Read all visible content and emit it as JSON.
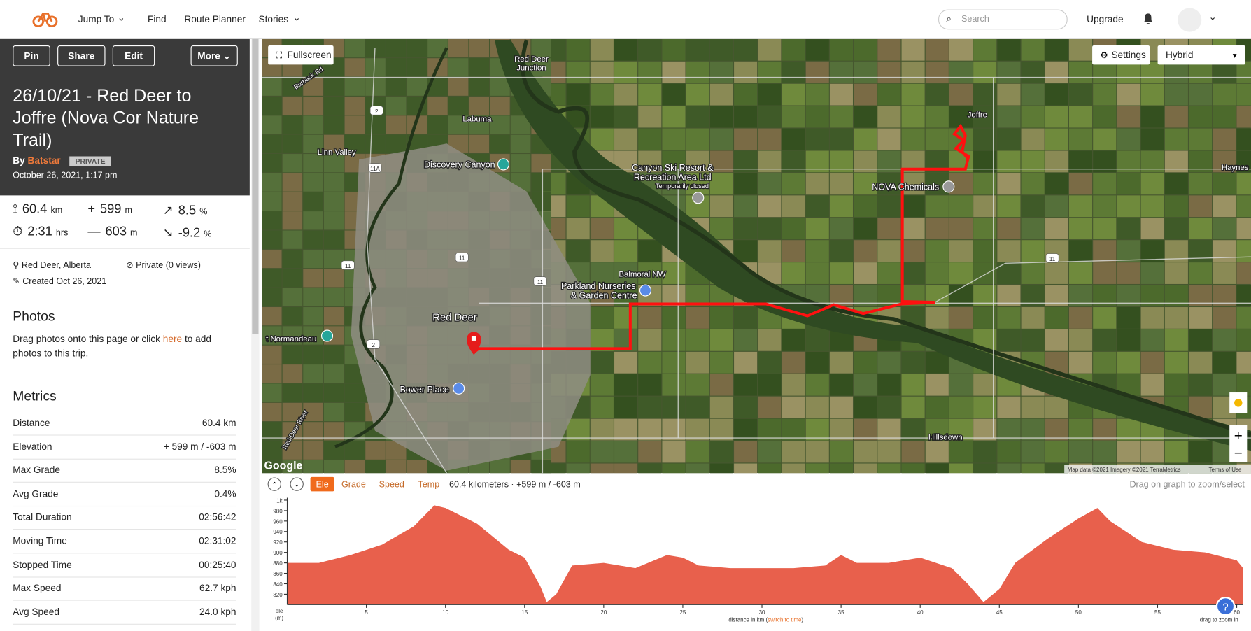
{
  "nav": {
    "items": [
      "Jump To",
      "Find",
      "Route Planner",
      "Stories"
    ],
    "search": "Search",
    "upgrade": "Upgrade"
  },
  "sidebar": {
    "buttons": [
      "Pin",
      "Share",
      "Edit",
      "More"
    ],
    "title": "26/10/21 - Red Deer to Joffre (Nova Cor Nature Trail)",
    "by": "By",
    "author": "Batstar",
    "privacy_badge": "PRIVATE",
    "date": "October 26, 2021, 1:17 pm",
    "stats": [
      {
        "value": "60.4",
        "unit": "km"
      },
      {
        "value": "599",
        "unit": "m"
      },
      {
        "value": "8.5",
        "unit": "%"
      },
      {
        "value": "2:31",
        "unit": "hrs"
      },
      {
        "value": "603",
        "unit": "m"
      },
      {
        "value": "-9.2",
        "unit": "%"
      }
    ],
    "location": "Red Deer, Alberta",
    "visibility": "Private (0 views)",
    "created": "Created Oct 26, 2021",
    "photos": {
      "title": "Photos",
      "text_before": "Drag photos onto this page or click ",
      "link": "here",
      "text_after": " to add photos to this trip."
    },
    "metrics": {
      "title": "Metrics",
      "rows": [
        [
          "Distance",
          "60.4 km"
        ],
        [
          "Elevation",
          "+ 599 m / -603 m"
        ],
        [
          "Max Grade",
          "8.5%"
        ],
        [
          "Avg Grade",
          "0.4%"
        ],
        [
          "Total Duration",
          "02:56:42"
        ],
        [
          "Moving Time",
          "02:31:02"
        ],
        [
          "Stopped Time",
          "00:25:40"
        ],
        [
          "Max Speed",
          "62.7 kph"
        ],
        [
          "Avg Speed",
          "24.0 kph"
        ]
      ]
    }
  },
  "map": {
    "fullscreen": "Fullscreen",
    "settings": "Settings",
    "map_type": "Hybrid",
    "labels": [
      "Red Deer",
      "Junction",
      "Labuma",
      "Linn Valley",
      "Discovery Canyon",
      "Canyon Ski Resort &",
      "Recreation Area Ltd",
      "Temporarily closed",
      "NOVA Chemicals",
      "Joffre",
      "Haynes",
      "Balmoral NW",
      "Parkland Nurseries",
      "& Garden Centre",
      "Red Deer",
      "t Normandeau",
      "Bower Place",
      "Hillsdown",
      "Red Deer River",
      "Burbank Rd"
    ],
    "shields": [
      "2",
      "11A",
      "11",
      "11",
      "11",
      "2",
      "11"
    ],
    "logo": "Google",
    "attribution": "Map data ©2021 Imagery ©2021 TerraMetrics",
    "terms": "Terms of Use"
  },
  "elevation": {
    "tabs": [
      "Ele",
      "Grade",
      "Speed",
      "Temp"
    ],
    "summary": "60.4 kilometers · +599 m / -603 m",
    "hint": "Drag on graph to zoom/select",
    "chart_data": {
      "type": "area",
      "y_label": "ele (m)",
      "x_label": "distance in km (",
      "x_label_link": "switch to time",
      "x_label_end": ")",
      "zoom_hint": "drag to zoom in",
      "color": "#e8604c",
      "x": [
        0,
        2,
        4,
        6,
        8,
        9.3,
        10,
        12,
        14,
        15,
        16,
        16.4,
        17,
        18,
        20,
        22,
        24,
        25,
        26,
        28,
        30,
        32,
        34,
        35,
        36,
        38,
        40,
        42,
        43,
        44,
        45,
        46,
        48,
        50,
        51.2,
        52,
        54,
        56,
        58,
        60,
        60.4
      ],
      "values": [
        880,
        880,
        895,
        915,
        950,
        990,
        985,
        955,
        905,
        890,
        835,
        805,
        820,
        875,
        880,
        870,
        895,
        890,
        875,
        870,
        870,
        870,
        875,
        895,
        880,
        880,
        890,
        870,
        840,
        805,
        830,
        880,
        925,
        965,
        985,
        960,
        920,
        905,
        900,
        885,
        870
      ],
      "xlim": [
        0,
        60.4
      ],
      "ylim": [
        800,
        1000
      ],
      "xticks": [
        5,
        10,
        15,
        20,
        25,
        30,
        35,
        40,
        45,
        50,
        55,
        60
      ],
      "yticks": [
        {
          "value": 1000,
          "label": "1k"
        },
        980,
        960,
        940,
        920,
        900,
        880,
        860,
        840,
        820
      ]
    }
  }
}
